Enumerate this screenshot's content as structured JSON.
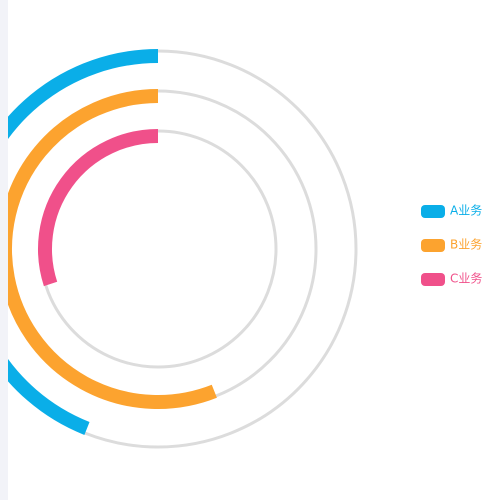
{
  "chart_data": {
    "type": "radial-progress",
    "ylim": [
      0,
      100
    ],
    "series": [
      {
        "name": "A业务",
        "color": "#0aaee8",
        "values": [
          44
        ]
      },
      {
        "name": "B业务",
        "color": "#fca32f",
        "values": [
          56
        ]
      },
      {
        "name": "C业务",
        "color": "#f0508a",
        "values": [
          30
        ]
      }
    ],
    "legend": "right"
  }
}
